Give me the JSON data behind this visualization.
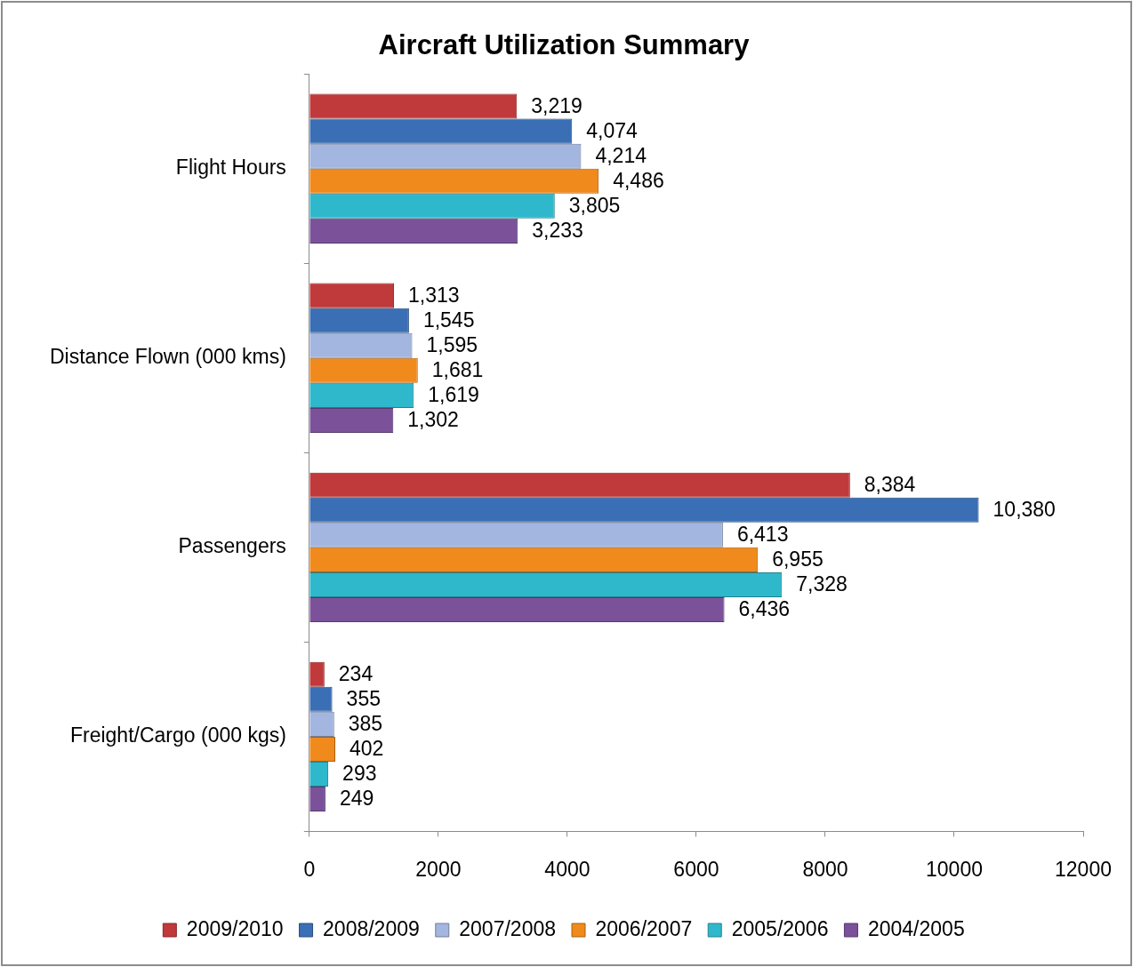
{
  "chart_data": {
    "type": "bar",
    "orientation": "horizontal",
    "title": "Aircraft Utilization Summary",
    "categories": [
      "Flight Hours",
      "Distance Flown (000 kms)",
      "Passengers",
      "Freight/Cargo (000 kgs)"
    ],
    "series": [
      {
        "name": "2009/2010",
        "color": "#c0393b",
        "values": [
          3219,
          1313,
          8384,
          234
        ],
        "value_labels": [
          "3,219",
          "1,313",
          "8,384",
          "234"
        ]
      },
      {
        "name": "2008/2009",
        "color": "#3a6fb5",
        "values": [
          4074,
          1545,
          10380,
          355
        ],
        "value_labels": [
          "4,074",
          "1,545",
          "10,380",
          "355"
        ]
      },
      {
        "name": "2007/2008",
        "color": "#a3b6e0",
        "values": [
          4214,
          1595,
          6413,
          385
        ],
        "value_labels": [
          "4,214",
          "1,595",
          "6,413",
          "385"
        ]
      },
      {
        "name": "2006/2007",
        "color": "#f08a1c",
        "values": [
          4486,
          1681,
          6955,
          402
        ],
        "value_labels": [
          "4,486",
          "1,681",
          "6,955",
          "402"
        ]
      },
      {
        "name": "2005/2006",
        "color": "#2fb8cc",
        "values": [
          3805,
          1619,
          7328,
          293
        ],
        "value_labels": [
          "3,805",
          "1,619",
          "7,328",
          "293"
        ]
      },
      {
        "name": "2004/2005",
        "color": "#7b529a",
        "values": [
          3233,
          1302,
          6436,
          249
        ],
        "value_labels": [
          "3,233",
          "1,302",
          "6,436",
          "249"
        ]
      }
    ],
    "xlim": [
      0,
      12000
    ],
    "xticks": [
      0,
      2000,
      4000,
      6000,
      8000,
      10000,
      12000
    ],
    "grid": false,
    "legend": "bottom"
  }
}
